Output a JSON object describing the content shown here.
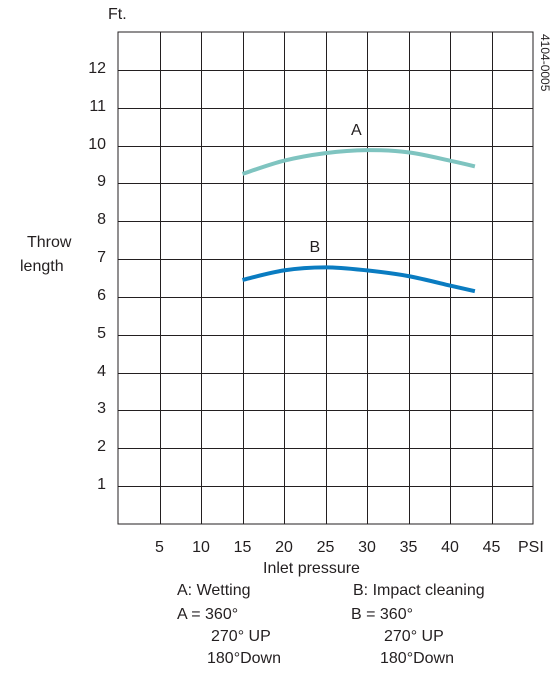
{
  "chart_data": {
    "type": "line",
    "title": "",
    "xlabel": "Inlet pressure",
    "x_unit": "PSI",
    "y_unit": "Ft.",
    "ylabel_lines": [
      "Throw",
      "length"
    ],
    "xlim": [
      0,
      50
    ],
    "ylim": [
      0,
      13
    ],
    "x_ticks": [
      5,
      10,
      15,
      20,
      25,
      30,
      35,
      40,
      45
    ],
    "y_ticks": [
      1,
      2,
      3,
      4,
      5,
      6,
      7,
      8,
      9,
      10,
      11,
      12
    ],
    "grid": true,
    "code": "4104-0005",
    "series": [
      {
        "name": "A",
        "color": "#7fc4c0",
        "x": [
          15,
          20,
          25,
          30,
          35,
          40,
          43
        ],
        "y": [
          9.25,
          9.6,
          9.8,
          9.88,
          9.82,
          9.6,
          9.45
        ]
      },
      {
        "name": "B",
        "color": "#0a7cc1",
        "x": [
          15,
          20,
          25,
          30,
          35,
          40,
          43
        ],
        "y": [
          6.45,
          6.7,
          6.78,
          6.7,
          6.55,
          6.3,
          6.15
        ]
      }
    ],
    "legend": {
      "a_title": "A: Wetting",
      "b_title": "B: Impact cleaning",
      "a_lines": [
        "A = 360°",
        "270° UP",
        "180°Down"
      ],
      "b_lines": [
        "B = 360°",
        "270° UP",
        "180°Down"
      ]
    }
  }
}
